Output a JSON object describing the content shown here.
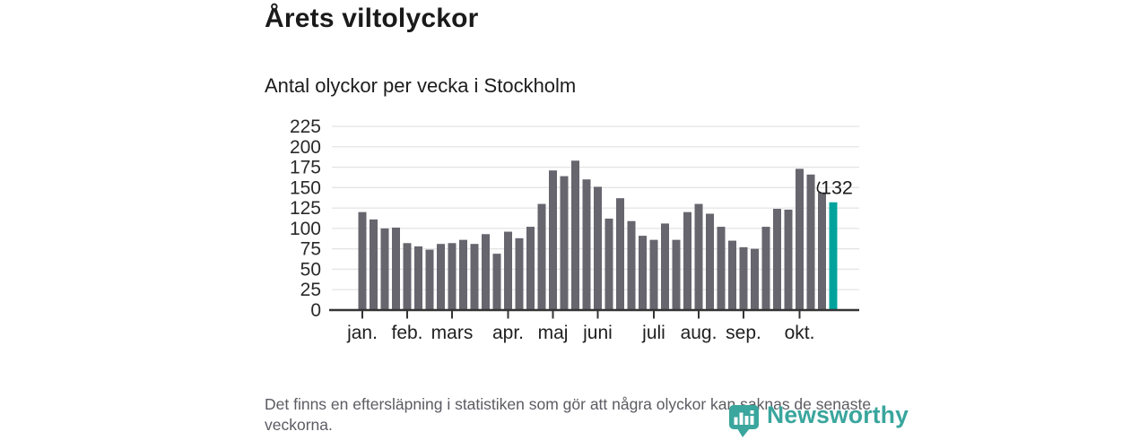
{
  "header": {
    "title": "Årets viltolyckor",
    "subtitle": "Antal olyckor per vecka i Stockholm"
  },
  "chart_data": {
    "type": "bar",
    "title": "Årets viltolyckor",
    "subtitle": "Antal olyckor per vecka i Stockholm",
    "xlabel": "",
    "ylabel": "Antal olyckor per vecka",
    "ylim": [
      0,
      225
    ],
    "yticks": [
      0,
      25,
      50,
      75,
      100,
      125,
      150,
      175,
      200,
      225
    ],
    "grid": "horizontal",
    "legend": "none",
    "values": [
      120,
      111,
      100,
      101,
      82,
      78,
      74,
      81,
      82,
      86,
      81,
      93,
      69,
      96,
      88,
      102,
      130,
      171,
      164,
      183,
      160,
      151,
      112,
      137,
      109,
      91,
      86,
      106,
      86,
      120,
      130,
      118,
      102,
      85,
      77,
      75,
      102,
      124,
      123,
      173,
      166,
      144,
      132
    ],
    "month_ticks": [
      {
        "label": "jan.",
        "index": 0
      },
      {
        "label": "feb.",
        "index": 4
      },
      {
        "label": "mars",
        "index": 8
      },
      {
        "label": "apr.",
        "index": 13
      },
      {
        "label": "maj",
        "index": 17
      },
      {
        "label": "juni",
        "index": 21
      },
      {
        "label": "juli",
        "index": 26
      },
      {
        "label": "aug.",
        "index": 30
      },
      {
        "label": "sep.",
        "index": 34
      },
      {
        "label": "okt.",
        "index": 39
      }
    ],
    "bar_color": "#67656e",
    "highlight": {
      "index": 42,
      "label": "132",
      "color": "#00a39c"
    }
  },
  "footer": {
    "note": "Det finns en eftersläpning i statistiken som gör att några olyckor kan saknas de senaste veckorna."
  },
  "branding": {
    "logo_text": "Newsworthy",
    "logo_color": "#3aa69d"
  }
}
